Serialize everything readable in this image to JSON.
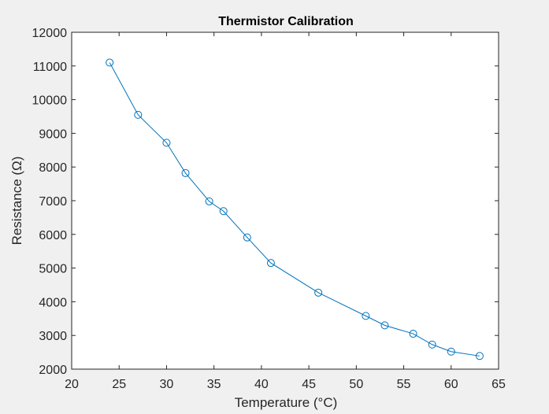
{
  "chart_data": {
    "type": "line",
    "title": "Thermistor Calibration",
    "xlabel": "Temperature (°C)",
    "ylabel": "Resistance (Ω)",
    "xlim": [
      20,
      65
    ],
    "ylim": [
      2000,
      12000
    ],
    "xticks": [
      20,
      25,
      30,
      35,
      40,
      45,
      50,
      55,
      60,
      65
    ],
    "yticks": [
      2000,
      3000,
      4000,
      5000,
      6000,
      7000,
      8000,
      9000,
      10000,
      11000,
      12000
    ],
    "grid": true,
    "marker": "circle",
    "line_color": "#0072bd",
    "series": [
      {
        "x": [
          24,
          27,
          30,
          32,
          34.5,
          36,
          38.5,
          41,
          46,
          51,
          53,
          56,
          58,
          60,
          63
        ],
        "y": [
          11100,
          9550,
          8720,
          7820,
          6980,
          6690,
          5910,
          5150,
          4270,
          3580,
          3300,
          3050,
          2730,
          2520,
          2390
        ]
      }
    ]
  }
}
